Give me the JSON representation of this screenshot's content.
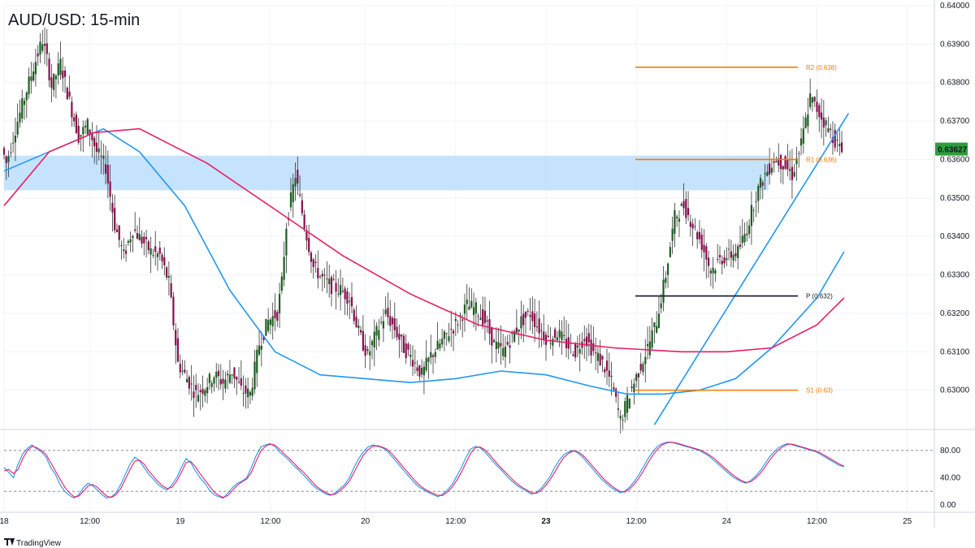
{
  "chart_data": [
    {
      "type": "candlestick",
      "title": "AUD/USD: 15-min",
      "ylim": [
        0.629,
        0.64
      ],
      "y_ticks": [
        "0.64000",
        "0.63900",
        "0.63800",
        "0.63700",
        "0.63600",
        "0.63500",
        "0.63400",
        "0.63300",
        "0.63200",
        "0.63100",
        "0.63000"
      ],
      "x_ticks": [
        "18",
        "12:00",
        "19",
        "12:00",
        "20",
        "12:00",
        "23",
        "12:00",
        "24",
        "12:00",
        "25",
        "12:00"
      ],
      "last_price": "0.63627",
      "zone": {
        "from": 0.6352,
        "to": 0.6361,
        "color": "#bbdefb"
      },
      "levels": [
        {
          "name": "R2 (0.638)",
          "value": 0.6384,
          "color": "#f57c00"
        },
        {
          "name": "R1 (0.636)",
          "value": 0.636,
          "color": "#f57c00"
        },
        {
          "name": "P (0.632)",
          "value": 0.63245,
          "color": "#131722"
        },
        {
          "name": "S1 (0.63)",
          "value": 0.63,
          "color": "#f57c00"
        }
      ],
      "price_path": [
        [
          0,
          0.6363
        ],
        [
          1,
          0.6359
        ],
        [
          3,
          0.6368
        ],
        [
          5,
          0.6376
        ],
        [
          7,
          0.6384
        ],
        [
          9,
          0.6391
        ],
        [
          10,
          0.6386
        ],
        [
          11,
          0.6379
        ],
        [
          13,
          0.6385
        ],
        [
          15,
          0.6375
        ],
        [
          17,
          0.6366
        ],
        [
          19,
          0.6369
        ],
        [
          21,
          0.6362
        ],
        [
          23,
          0.6358
        ],
        [
          25,
          0.6343
        ],
        [
          27,
          0.6335
        ],
        [
          29,
          0.6342
        ],
        [
          31,
          0.6339
        ],
        [
          33,
          0.6336
        ],
        [
          35,
          0.6335
        ],
        [
          37,
          0.6328
        ],
        [
          39,
          0.6307
        ],
        [
          41,
          0.6303
        ],
        [
          43,
          0.6299
        ],
        [
          45,
          0.6301
        ],
        [
          47,
          0.6304
        ],
        [
          49,
          0.6302
        ],
        [
          51,
          0.6305
        ],
        [
          53,
          0.63
        ],
        [
          55,
          0.6299
        ],
        [
          57,
          0.6312
        ],
        [
          59,
          0.6318
        ],
        [
          61,
          0.632
        ],
        [
          62,
          0.6328
        ],
        [
          63,
          0.6343
        ],
        [
          65,
          0.6356
        ],
        [
          67,
          0.6343
        ],
        [
          69,
          0.6332
        ],
        [
          71,
          0.6329
        ],
        [
          73,
          0.6327
        ],
        [
          75,
          0.6326
        ],
        [
          77,
          0.6324
        ],
        [
          79,
          0.6315
        ],
        [
          81,
          0.6309
        ],
        [
          83,
          0.6315
        ],
        [
          85,
          0.632
        ],
        [
          87,
          0.6316
        ],
        [
          89,
          0.6311
        ],
        [
          91,
          0.6308
        ],
        [
          93,
          0.6304
        ],
        [
          95,
          0.6309
        ],
        [
          97,
          0.6312
        ],
        [
          99,
          0.6315
        ],
        [
          101,
          0.6318
        ],
        [
          103,
          0.6322
        ],
        [
          105,
          0.6321
        ],
        [
          107,
          0.6318
        ],
        [
          109,
          0.6312
        ],
        [
          111,
          0.631
        ],
        [
          113,
          0.6314
        ],
        [
          115,
          0.6318
        ],
        [
          117,
          0.632
        ],
        [
          119,
          0.6316
        ],
        [
          121,
          0.6313
        ],
        [
          123,
          0.6315
        ],
        [
          125,
          0.6312
        ],
        [
          127,
          0.631
        ],
        [
          129,
          0.6314
        ],
        [
          131,
          0.631
        ],
        [
          133,
          0.6307
        ],
        [
          135,
          0.6302
        ],
        [
          137,
          0.6292
        ],
        [
          139,
          0.6299
        ],
        [
          141,
          0.6305
        ],
        [
          143,
          0.6311
        ],
        [
          145,
          0.6318
        ],
        [
          147,
          0.633
        ],
        [
          149,
          0.6345
        ],
        [
          151,
          0.6348
        ],
        [
          153,
          0.6343
        ],
        [
          155,
          0.6338
        ],
        [
          157,
          0.6331
        ],
        [
          159,
          0.6334
        ],
        [
          161,
          0.6335
        ],
        [
          163,
          0.6336
        ],
        [
          165,
          0.6342
        ],
        [
          167,
          0.6351
        ],
        [
          169,
          0.6356
        ],
        [
          171,
          0.636
        ],
        [
          173,
          0.6359
        ],
        [
          175,
          0.6356
        ],
        [
          177,
          0.6364
        ],
        [
          179,
          0.6376
        ],
        [
          181,
          0.6372
        ],
        [
          183,
          0.6368
        ],
        [
          185,
          0.6364
        ],
        [
          186,
          0.6362
        ]
      ],
      "series": [
        {
          "name": "",
          "color": "#2196f3",
          "points": [
            [
              0,
              0.6357
            ],
            [
              12,
              0.6363
            ],
            [
              22,
              0.6368
            ],
            [
              30,
              0.6362
            ],
            [
              40,
              0.6348
            ],
            [
              50,
              0.6326
            ],
            [
              60,
              0.631
            ],
            [
              70,
              0.6304
            ],
            [
              80,
              0.6303
            ],
            [
              90,
              0.6302
            ],
            [
              100,
              0.6303
            ],
            [
              110,
              0.6305
            ],
            [
              120,
              0.6304
            ],
            [
              130,
              0.6301
            ],
            [
              138,
              0.6299
            ],
            [
              146,
              0.6299
            ],
            [
              154,
              0.63
            ],
            [
              162,
              0.6303
            ],
            [
              170,
              0.6311
            ],
            [
              180,
              0.6324
            ],
            [
              186,
              0.6336
            ]
          ]
        },
        {
          "name": "",
          "color": "#e91e63",
          "points": [
            [
              0,
              0.6348
            ],
            [
              10,
              0.6362
            ],
            [
              20,
              0.6367
            ],
            [
              30,
              0.6368
            ],
            [
              45,
              0.6359
            ],
            [
              60,
              0.6347
            ],
            [
              75,
              0.6335
            ],
            [
              90,
              0.6325
            ],
            [
              105,
              0.6317
            ],
            [
              120,
              0.6313
            ],
            [
              135,
              0.6311
            ],
            [
              150,
              0.631
            ],
            [
              160,
              0.631
            ],
            [
              170,
              0.6311
            ],
            [
              180,
              0.6317
            ],
            [
              186,
              0.6324
            ]
          ]
        },
        {
          "name": "",
          "color": "#2196f3",
          "points": [
            [
              144,
              0.6291
            ],
            [
              187,
              0.6372
            ]
          ]
        }
      ]
    },
    {
      "type": "line",
      "y_ticks": [
        "80.00",
        "40.00",
        "0.00"
      ],
      "ylim": [
        0,
        100
      ],
      "bands": [
        80,
        20
      ],
      "series": [
        {
          "name": "",
          "color": "#2196f3",
          "values": [
            55,
            48,
            40,
            60,
            75,
            83,
            88,
            82,
            78,
            70,
            55,
            45,
            30,
            20,
            14,
            10,
            15,
            25,
            32,
            28,
            22,
            15,
            10,
            12,
            18,
            30,
            45,
            60,
            70,
            65,
            55,
            45,
            38,
            30,
            25,
            22,
            30,
            40,
            55,
            68,
            62,
            50,
            40,
            32,
            22,
            15,
            12,
            10,
            18,
            26,
            32,
            35,
            40,
            55,
            72,
            85,
            88,
            90,
            86,
            78,
            72,
            66,
            58,
            52,
            45,
            38,
            30,
            24,
            20,
            16,
            14,
            18,
            24,
            30,
            40,
            55,
            68,
            78,
            85,
            88,
            86,
            84,
            80,
            72,
            64,
            56,
            48,
            40,
            32,
            26,
            22,
            18,
            15,
            12,
            16,
            22,
            30,
            42,
            55,
            70,
            82,
            86,
            84,
            78,
            70,
            62,
            55,
            48,
            40,
            34,
            28,
            24,
            20,
            16,
            18,
            24,
            32,
            42,
            55,
            66,
            74,
            78,
            80,
            76,
            70,
            62,
            54,
            46,
            38,
            32,
            26,
            22,
            18,
            20,
            26,
            34,
            44,
            56,
            68,
            78,
            86,
            90,
            92,
            92,
            90,
            88,
            86,
            84,
            82,
            80,
            76,
            72,
            66,
            60,
            54,
            48,
            42,
            38,
            34,
            32,
            36,
            42,
            50,
            60,
            70,
            78,
            84,
            88,
            90,
            88,
            86,
            84,
            82,
            80,
            78,
            74,
            70,
            66,
            62,
            58,
            56
          ]
        },
        {
          "name": "",
          "color": "#e91e63",
          "values": [
            50,
            52,
            46,
            52,
            68,
            80,
            86,
            84,
            80,
            74,
            62,
            50,
            38,
            26,
            18,
            12,
            13,
            20,
            28,
            30,
            26,
            19,
            13,
            11,
            15,
            24,
            38,
            52,
            64,
            66,
            60,
            50,
            42,
            34,
            28,
            24,
            26,
            35,
            48,
            62,
            64,
            56,
            46,
            37,
            28,
            19,
            14,
            11,
            14,
            22,
            29,
            34,
            38,
            48,
            64,
            79,
            86,
            89,
            88,
            82,
            75,
            69,
            62,
            55,
            49,
            42,
            34,
            27,
            22,
            18,
            15,
            16,
            21,
            27,
            35,
            48,
            61,
            73,
            81,
            86,
            87,
            85,
            82,
            76,
            68,
            60,
            52,
            44,
            36,
            29,
            24,
            20,
            17,
            14,
            14,
            19,
            26,
            36,
            48,
            62,
            76,
            84,
            85,
            81,
            74,
            66,
            58,
            51,
            44,
            37,
            31,
            26,
            22,
            18,
            17,
            21,
            28,
            37,
            48,
            60,
            70,
            76,
            79,
            78,
            73,
            66,
            58,
            50,
            42,
            35,
            29,
            24,
            20,
            19,
            23,
            30,
            39,
            50,
            62,
            73,
            82,
            88,
            91,
            92,
            91,
            89,
            87,
            85,
            83,
            81,
            78,
            74,
            69,
            63,
            57,
            51,
            45,
            40,
            36,
            33,
            34,
            39,
            46,
            55,
            65,
            74,
            81,
            86,
            89,
            89,
            87,
            85,
            83,
            81,
            79,
            76,
            72,
            68,
            64,
            60,
            57
          ]
        }
      ]
    }
  ],
  "branding": "TradingView"
}
